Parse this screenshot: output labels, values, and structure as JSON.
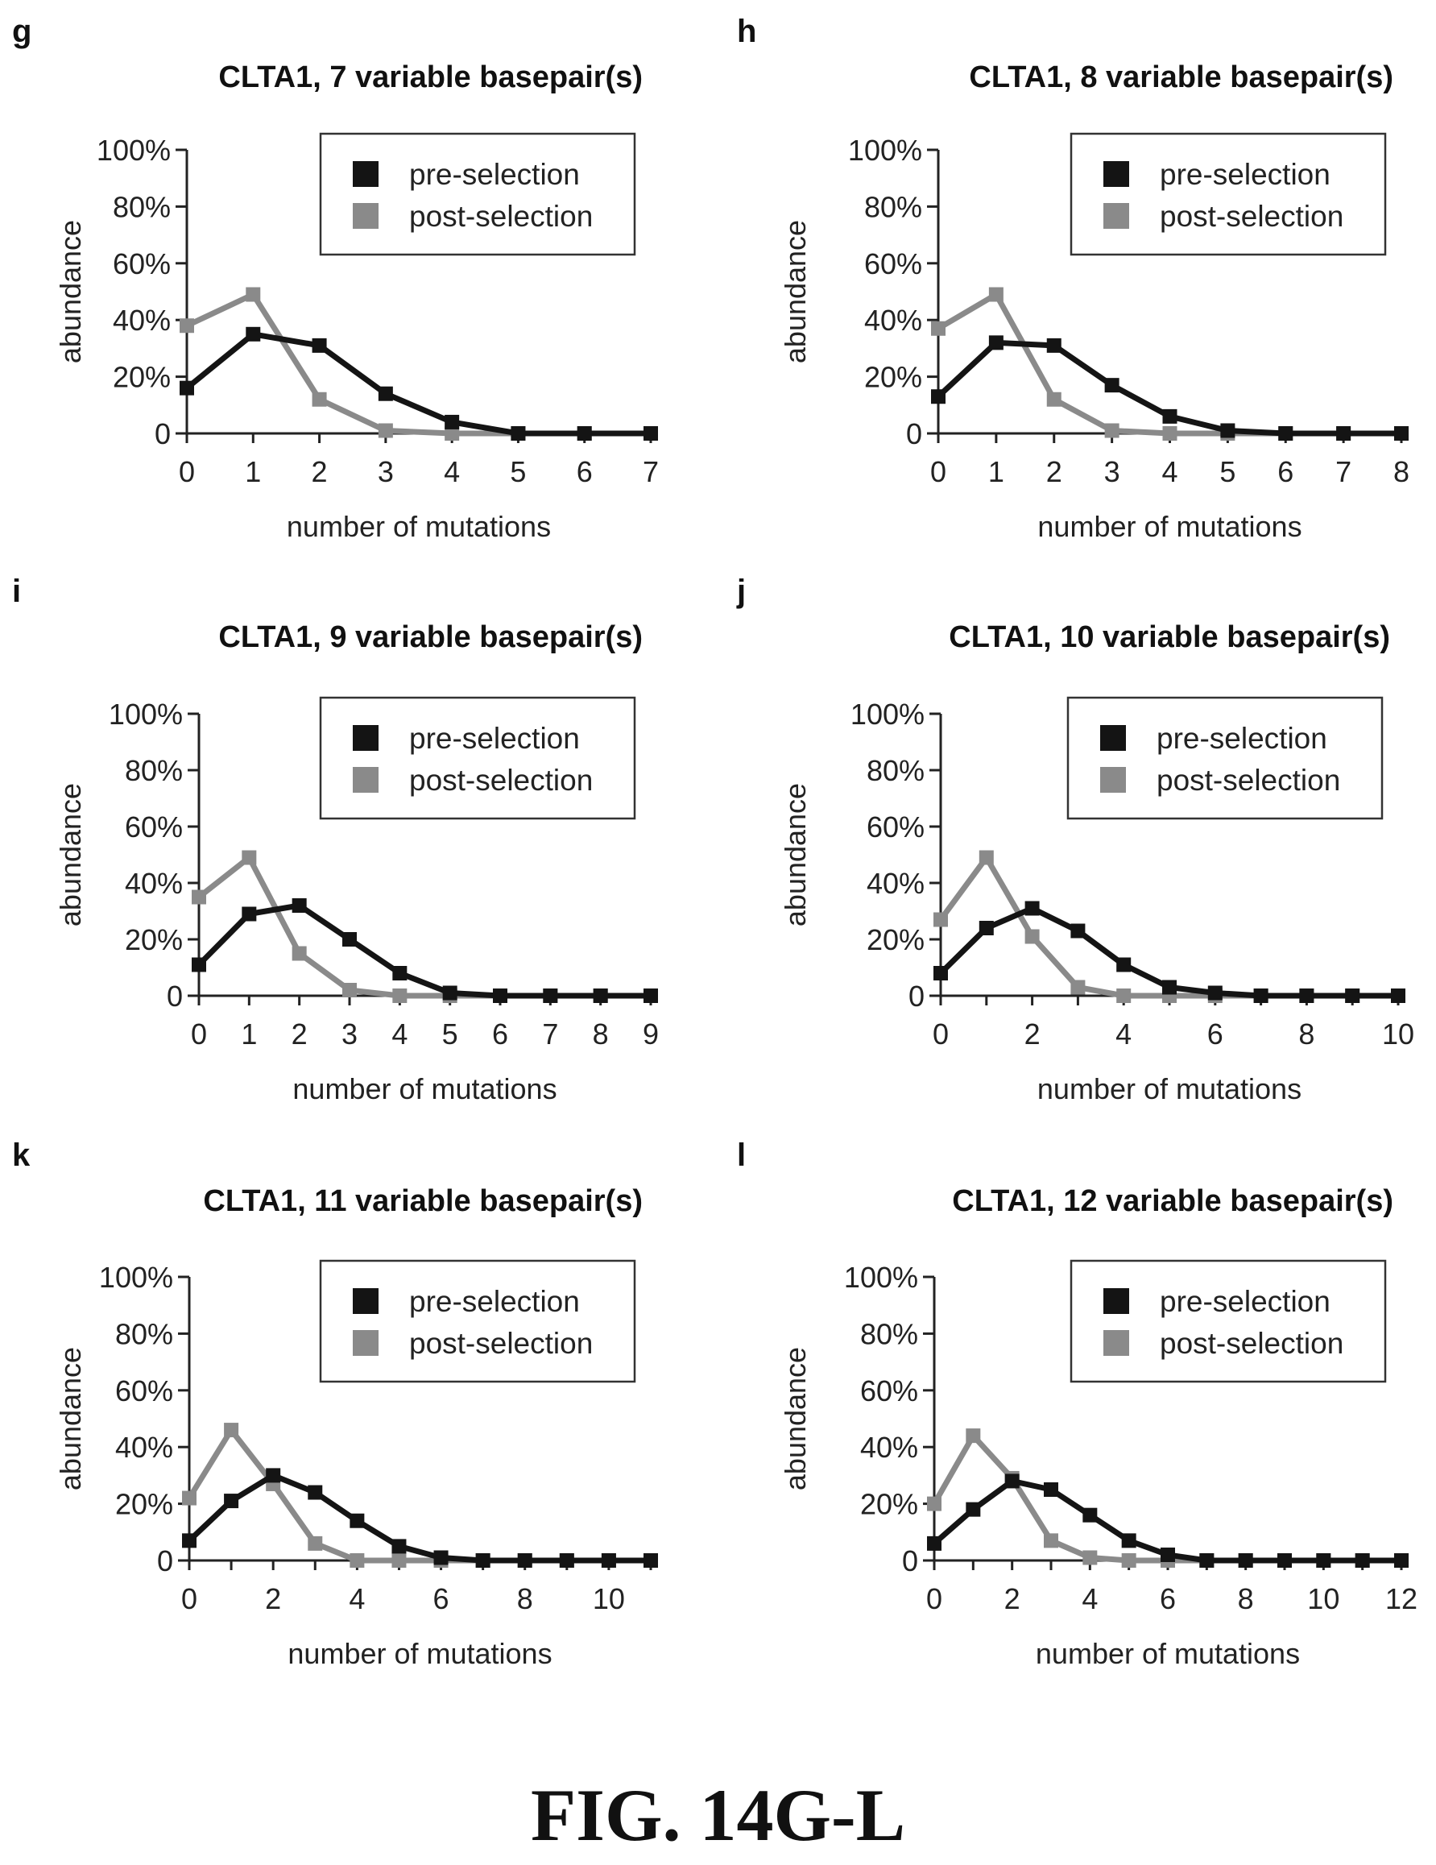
{
  "figure_caption": "FIG. 14G-L",
  "colors": {
    "pre": "#141414",
    "post": "#8a8a8a",
    "axis": "#222222"
  },
  "chart_data": [
    {
      "type": "line",
      "panel_label": "g",
      "title": "CLTA1, 7 variable basepair(s)",
      "xlabel": "number of mutations",
      "ylabel": "abundance",
      "x": [
        0,
        1,
        2,
        3,
        4,
        5,
        6,
        7
      ],
      "xticks": [
        "0",
        "1",
        "2",
        "3",
        "4",
        "5",
        "6",
        "7"
      ],
      "yticks": [
        "0",
        "20%",
        "40%",
        "60%",
        "80%",
        "100%"
      ],
      "xlim": [
        0,
        7
      ],
      "ylim": [
        0,
        100
      ],
      "legend_position": "top-right",
      "series": [
        {
          "name": "pre-selection",
          "values": [
            16,
            35,
            31,
            14,
            4,
            0,
            0,
            0
          ]
        },
        {
          "name": "post-selection",
          "values": [
            38,
            49,
            12,
            1,
            0,
            0,
            0,
            0
          ]
        }
      ]
    },
    {
      "type": "line",
      "panel_label": "h",
      "title": "CLTA1, 8 variable basepair(s)",
      "xlabel": "number of mutations",
      "ylabel": "abundance",
      "x": [
        0,
        1,
        2,
        3,
        4,
        5,
        6,
        7,
        8
      ],
      "xticks": [
        "0",
        "1",
        "2",
        "3",
        "4",
        "5",
        "6",
        "7",
        "8"
      ],
      "yticks": [
        "0",
        "20%",
        "40%",
        "60%",
        "80%",
        "100%"
      ],
      "xlim": [
        0,
        8
      ],
      "ylim": [
        0,
        100
      ],
      "legend_position": "top-right",
      "series": [
        {
          "name": "pre-selection",
          "values": [
            13,
            32,
            31,
            17,
            6,
            1,
            0,
            0,
            0
          ]
        },
        {
          "name": "post-selection",
          "values": [
            37,
            49,
            12,
            1,
            0,
            0,
            0,
            0,
            0
          ]
        }
      ]
    },
    {
      "type": "line",
      "panel_label": "i",
      "title": "CLTA1, 9 variable basepair(s)",
      "xlabel": "number of mutations",
      "ylabel": "abundance",
      "x": [
        0,
        1,
        2,
        3,
        4,
        5,
        6,
        7,
        8,
        9
      ],
      "xticks": [
        "0",
        "1",
        "2",
        "3",
        "4",
        "5",
        "6",
        "7",
        "8",
        "9"
      ],
      "yticks": [
        "0",
        "20%",
        "40%",
        "60%",
        "80%",
        "100%"
      ],
      "xlim": [
        0,
        9
      ],
      "ylim": [
        0,
        100
      ],
      "legend_position": "top-right",
      "series": [
        {
          "name": "pre-selection",
          "values": [
            11,
            29,
            32,
            20,
            8,
            1,
            0,
            0,
            0,
            0
          ]
        },
        {
          "name": "post-selection",
          "values": [
            35,
            49,
            15,
            2,
            0,
            0,
            0,
            0,
            0,
            0
          ]
        }
      ]
    },
    {
      "type": "line",
      "panel_label": "j",
      "title": "CLTA1, 10 variable basepair(s)",
      "xlabel": "number of mutations",
      "ylabel": "abundance",
      "x": [
        0,
        1,
        2,
        3,
        4,
        5,
        6,
        7,
        8,
        9,
        10
      ],
      "xticks": [
        "0",
        "2",
        "4",
        "6",
        "8",
        "10"
      ],
      "yticks": [
        "0",
        "20%",
        "40%",
        "60%",
        "80%",
        "100%"
      ],
      "xlim": [
        0,
        10
      ],
      "ylim": [
        0,
        100
      ],
      "legend_position": "top-right",
      "series": [
        {
          "name": "pre-selection",
          "values": [
            8,
            24,
            31,
            23,
            11,
            3,
            1,
            0,
            0,
            0,
            0
          ]
        },
        {
          "name": "post-selection",
          "values": [
            27,
            49,
            21,
            3,
            0,
            0,
            0,
            0,
            0,
            0,
            0
          ]
        }
      ]
    },
    {
      "type": "line",
      "panel_label": "k",
      "title": "CLTA1, 11 variable basepair(s)",
      "xlabel": "number of mutations",
      "ylabel": "abundance",
      "x": [
        0,
        1,
        2,
        3,
        4,
        5,
        6,
        7,
        8,
        9,
        10,
        11
      ],
      "xticks": [
        "0",
        "2",
        "4",
        "6",
        "8",
        "10"
      ],
      "yticks": [
        "0",
        "20%",
        "40%",
        "60%",
        "80%",
        "100%"
      ],
      "xlim": [
        0,
        11
      ],
      "ylim": [
        0,
        100
      ],
      "legend_position": "top-right",
      "series": [
        {
          "name": "pre-selection",
          "values": [
            7,
            21,
            30,
            24,
            14,
            5,
            1,
            0,
            0,
            0,
            0,
            0
          ]
        },
        {
          "name": "post-selection",
          "values": [
            22,
            46,
            27,
            6,
            0,
            0,
            0,
            0,
            0,
            0,
            0,
            0
          ]
        }
      ]
    },
    {
      "type": "line",
      "panel_label": "l",
      "title": "CLTA1, 12 variable basepair(s)",
      "xlabel": "number of mutations",
      "ylabel": "abundance",
      "x": [
        0,
        1,
        2,
        3,
        4,
        5,
        6,
        7,
        8,
        9,
        10,
        11,
        12
      ],
      "xticks": [
        "0",
        "2",
        "4",
        "6",
        "8",
        "10",
        "12"
      ],
      "yticks": [
        "0",
        "20%",
        "40%",
        "60%",
        "80%",
        "100%"
      ],
      "xlim": [
        0,
        12
      ],
      "ylim": [
        0,
        100
      ],
      "legend_position": "top-right",
      "series": [
        {
          "name": "pre-selection",
          "values": [
            6,
            18,
            28,
            25,
            16,
            7,
            2,
            0,
            0,
            0,
            0,
            0,
            0
          ]
        },
        {
          "name": "post-selection",
          "values": [
            20,
            44,
            29,
            7,
            1,
            0,
            0,
            0,
            0,
            0,
            0,
            0,
            0
          ]
        }
      ]
    }
  ]
}
